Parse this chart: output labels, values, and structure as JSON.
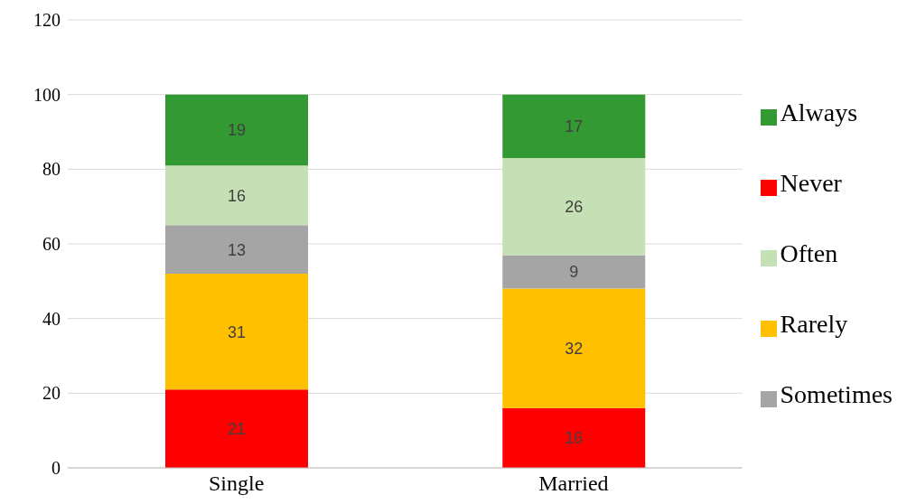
{
  "chart_data": {
    "type": "bar",
    "stacked": true,
    "categories": [
      "Single",
      "Married"
    ],
    "series": [
      {
        "name": "Never",
        "color": "#ff0000",
        "values": [
          21,
          16
        ]
      },
      {
        "name": "Rarely",
        "color": "#ffc000",
        "values": [
          31,
          32
        ]
      },
      {
        "name": "Sometimes",
        "color": "#a5a5a5",
        "values": [
          13,
          9
        ]
      },
      {
        "name": "Often",
        "color": "#c5e0b4",
        "values": [
          16,
          26
        ]
      },
      {
        "name": "Always",
        "color": "#339933",
        "values": [
          19,
          17
        ]
      }
    ],
    "ylim": [
      0,
      120
    ],
    "yticks": [
      0,
      20,
      40,
      60,
      80,
      100,
      120
    ],
    "grid": "y",
    "legend": "right",
    "data_labels": true
  }
}
